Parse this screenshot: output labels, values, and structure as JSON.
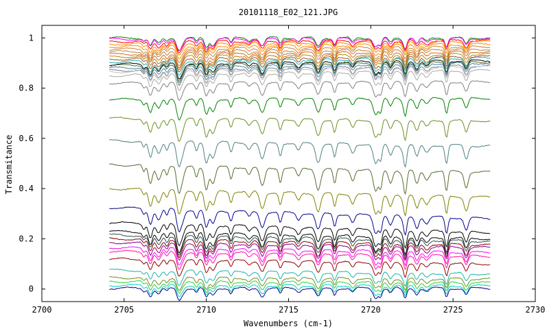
{
  "chart_data": {
    "type": "line",
    "title": "20101118_E02_121.JPG",
    "xlabel": "Wavenumbers (cm-1)",
    "ylabel": "Transmitance",
    "xlim": [
      2700,
      2730
    ],
    "ylim": [
      -0.05,
      1.05
    ],
    "x_ticks": [
      2700,
      2705,
      2710,
      2715,
      2720,
      2725,
      2730
    ],
    "x_tick_labels": [
      "2700",
      "2705",
      "2710",
      "2715",
      "2720",
      "2725",
      "2730"
    ],
    "y_ticks": [
      0,
      0.2,
      0.4,
      0.6,
      0.8,
      1
    ],
    "y_tick_labels": [
      "0",
      "0.2",
      "0.4",
      "0.6",
      "0.8",
      "1"
    ],
    "x_range": [
      2704.1,
      2727.3
    ],
    "grid": false,
    "legend": "none",
    "absorption_lines": [
      2706.2,
      2706.6,
      2707.1,
      2707.6,
      2708.3,
      2708.5,
      2709.4,
      2710.0,
      2710.4,
      2711.5,
      2712.6,
      2713.4,
      2714.5,
      2715.6,
      2716.8,
      2717.8,
      2718.9,
      2720.3,
      2720.6,
      2721.2,
      2722.0,
      2722.1,
      2722.8,
      2723.4,
      2724.6,
      2725.8
    ],
    "series": [
      {
        "color": "#008000",
        "start": 1.0,
        "end": 1.0
      },
      {
        "color": "#ff00ff",
        "start": 0.995,
        "end": 0.998
      },
      {
        "color": "#ff0000",
        "start": 0.985,
        "end": 0.99
      },
      {
        "color": "#ff8c00",
        "start": 0.975,
        "end": 0.985
      },
      {
        "color": "#ff8c00",
        "start": 0.965,
        "end": 0.975
      },
      {
        "color": "#cd853f",
        "start": 0.955,
        "end": 0.965
      },
      {
        "color": "#c08040",
        "start": 0.945,
        "end": 0.955
      },
      {
        "color": "#d2691e",
        "start": 0.935,
        "end": 0.945
      },
      {
        "color": "#b8860b",
        "start": 0.925,
        "end": 0.935
      },
      {
        "color": "#a0522d",
        "start": 0.915,
        "end": 0.925
      },
      {
        "color": "#20b2aa",
        "start": 0.905,
        "end": 0.92
      },
      {
        "color": "#000000",
        "start": 0.895,
        "end": 0.91
      },
      {
        "color": "#556b2f",
        "start": 0.89,
        "end": 0.905
      },
      {
        "color": "#4682b4",
        "start": 0.88,
        "end": 0.9
      },
      {
        "color": "#808080",
        "start": 0.87,
        "end": 0.89
      },
      {
        "color": "#c0c0c0",
        "start": 0.865,
        "end": 0.885
      },
      {
        "color": "#a9a9a9",
        "start": 0.85,
        "end": 0.87
      },
      {
        "color": "#808080",
        "start": 0.82,
        "end": 0.825
      },
      {
        "color": "#008000",
        "start": 0.755,
        "end": 0.76
      },
      {
        "color": "#6b8e23",
        "start": 0.68,
        "end": 0.67
      },
      {
        "color": "#4f7f7f",
        "start": 0.59,
        "end": 0.57
      },
      {
        "color": "#556b2f",
        "start": 0.495,
        "end": 0.465
      },
      {
        "color": "#808000",
        "start": 0.4,
        "end": 0.365
      },
      {
        "color": "#00008b",
        "start": 0.325,
        "end": 0.28
      },
      {
        "color": "#000000",
        "start": 0.265,
        "end": 0.225
      },
      {
        "color": "#000000",
        "start": 0.23,
        "end": 0.2
      },
      {
        "color": "#2f4f4f",
        "start": 0.215,
        "end": 0.19
      },
      {
        "color": "#8b0000",
        "start": 0.2,
        "end": 0.175
      },
      {
        "color": "#800080",
        "start": 0.185,
        "end": 0.165
      },
      {
        "color": "#ff00ff",
        "start": 0.165,
        "end": 0.145
      },
      {
        "color": "#ff1493",
        "start": 0.15,
        "end": 0.13
      },
      {
        "color": "#8b0000",
        "start": 0.12,
        "end": 0.1
      },
      {
        "color": "#20b2aa",
        "start": 0.075,
        "end": 0.06
      },
      {
        "color": "#6b8e23",
        "start": 0.045,
        "end": 0.04
      },
      {
        "color": "#32cd32",
        "start": 0.03,
        "end": 0.025
      },
      {
        "color": "#00ced1",
        "start": 0.015,
        "end": 0.012
      },
      {
        "color": "#00008b",
        "start": 0.003,
        "end": 0.003
      }
    ]
  }
}
